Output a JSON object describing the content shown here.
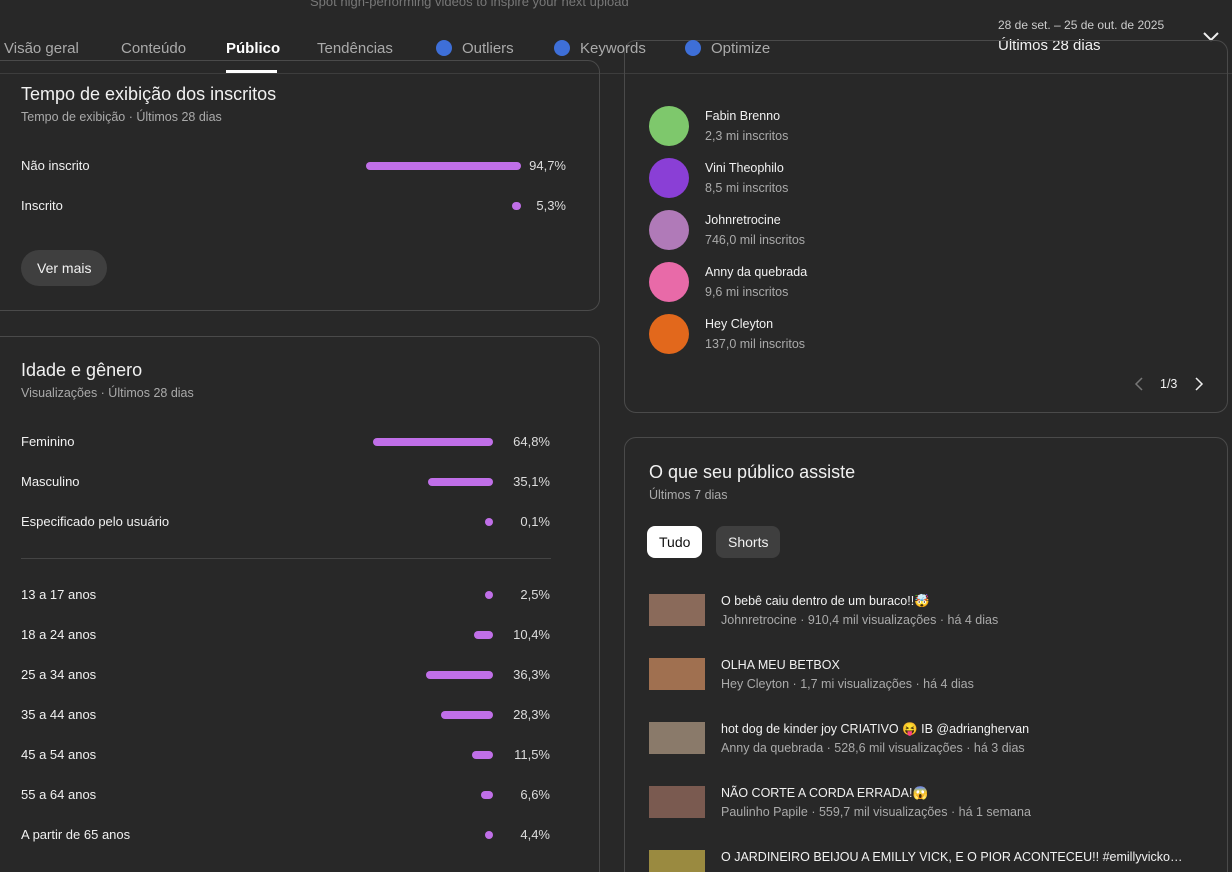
{
  "top_hint": "Spot high-performing videos to inspire your next upload",
  "tabs": [
    "Visão geral",
    "Conteúdo",
    "Público",
    "Tendências",
    "Outliers",
    "Keywords",
    "Optimize"
  ],
  "date_range": {
    "dates": "28 de set. – 25 de out. de 2025",
    "label": "Últimos 28 dias"
  },
  "subscriber_watch_time": {
    "title": "Tempo de exibição dos inscritos",
    "subtitle": "Tempo de exibição · Últimos 28 dias",
    "rows": [
      {
        "label": "Não inscrito",
        "value": 94.7,
        "value_label": "94,7%"
      },
      {
        "label": "Inscrito",
        "value": 5.3,
        "value_label": "5,3%"
      }
    ],
    "button": "Ver mais"
  },
  "age_gender": {
    "title": "Idade e gênero",
    "subtitle": "Visualizações · Últimos 28 dias",
    "gender": [
      {
        "label": "Feminino",
        "value": 64.8,
        "value_label": "64,8%"
      },
      {
        "label": "Masculino",
        "value": 35.1,
        "value_label": "35,1%"
      },
      {
        "label": "Especificado pelo usuário",
        "value": 0.1,
        "value_label": "0,1%"
      }
    ],
    "age": [
      {
        "label": "13 a 17 anos",
        "value": 2.5,
        "value_label": "2,5%"
      },
      {
        "label": "18 a 24 anos",
        "value": 10.4,
        "value_label": "10,4%"
      },
      {
        "label": "25 a 34 anos",
        "value": 36.3,
        "value_label": "36,3%"
      },
      {
        "label": "35 a 44 anos",
        "value": 28.3,
        "value_label": "28,3%"
      },
      {
        "label": "45 a 54 anos",
        "value": 11.5,
        "value_label": "11,5%"
      },
      {
        "label": "55 a 64 anos",
        "value": 6.6,
        "value_label": "6,6%"
      },
      {
        "label": "A partir de 65 anos",
        "value": 4.4,
        "value_label": "4,4%"
      }
    ]
  },
  "channels": {
    "items": [
      {
        "name": "Fabin Brenno",
        "subs": "2,3 mi inscritos"
      },
      {
        "name": "Vini Theophilo",
        "subs": "8,5 mi inscritos"
      },
      {
        "name": "Johnretrocine",
        "subs": "746,0 mil inscritos"
      },
      {
        "name": "Anny da quebrada",
        "subs": "9,6 mi inscritos"
      },
      {
        "name": "Hey Cleyton",
        "subs": "137,0 mil inscritos"
      }
    ],
    "page": "1/3"
  },
  "what_they_watch": {
    "title": "O que seu público assiste",
    "subtitle": "Últimos 7 dias",
    "filters": [
      "Tudo",
      "Shorts"
    ],
    "videos": [
      {
        "title": "O bebê caiu dentro de um buraco!!🤯",
        "meta": "Johnretrocine · 910,4 mil visualizações · há 4 dias"
      },
      {
        "title": "OLHA MEU BETBOX",
        "meta": "Hey Cleyton · 1,7 mi visualizações · há 4 dias"
      },
      {
        "title": "hot dog de kinder joy CRIATIVO 😝 IB @adrianghervan",
        "meta": "Anny da quebrada · 528,6 mil visualizações · há 3 dias"
      },
      {
        "title": "NÃO CORTE A CORDA ERRADA!😱",
        "meta": "Paulinho Papile · 559,7 mil visualizações · há 1 semana"
      },
      {
        "title": "O JARDINEIRO BEIJOU A EMILLY VICK, E O PIOR ACONTECEU!! #emillyvicko…"
      }
    ]
  }
}
